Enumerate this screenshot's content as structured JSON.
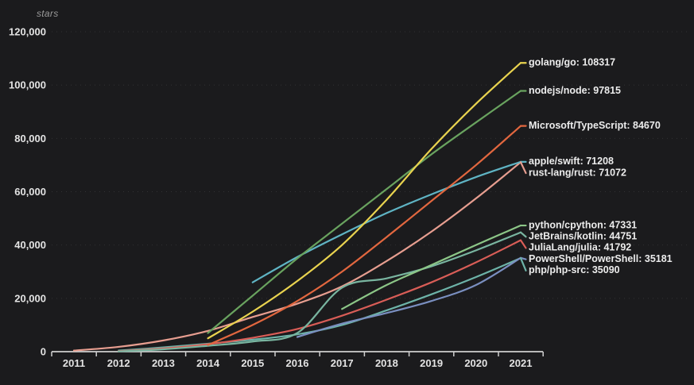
{
  "chart": {
    "background": "#1b1b1d",
    "axis_color": "#cfcfcf",
    "grid_color": "#ffffff",
    "tick_text_color": "#e3e3e3",
    "muted_text_color": "#9a9a9a",
    "label_text_color": "#ececec"
  },
  "chart_data": {
    "type": "line",
    "title": "",
    "xlabel": "",
    "ylabel": "stars",
    "x_range": [
      2011,
      2021
    ],
    "ylim": [
      0,
      120000
    ],
    "y_tick_values": [
      0,
      20000,
      40000,
      60000,
      80000,
      100000,
      120000
    ],
    "y_tick_labels": [
      "0",
      "20,000",
      "40,000",
      "60,000",
      "80,000",
      "100,000",
      "120,000"
    ],
    "x_tick_labels": [
      "2011",
      "2012",
      "2013",
      "2014",
      "2015",
      "2016",
      "2017",
      "2018",
      "2019",
      "2020",
      "2021"
    ],
    "grid": "horizontal-dashed",
    "legend_position": "right-end-labels",
    "series": [
      {
        "name": "rust-lang/rust",
        "final_value": 71072,
        "label": "rust-lang/rust: 71072",
        "color": "#e79e90",
        "points": [
          [
            2011,
            400
          ],
          [
            2012,
            1800
          ],
          [
            2013,
            4200
          ],
          [
            2014,
            7800
          ],
          [
            2015,
            13000
          ],
          [
            2016,
            18000
          ],
          [
            2017,
            24500
          ],
          [
            2018,
            34000
          ],
          [
            2019,
            45000
          ],
          [
            2020,
            57500
          ],
          [
            2021,
            71072
          ]
        ]
      },
      {
        "name": "php/php-src",
        "final_value": 35090,
        "label": "php/php-src: 35090",
        "color": "#6db3a8",
        "points": [
          [
            2012,
            400
          ],
          [
            2013,
            1600
          ],
          [
            2014,
            3000
          ],
          [
            2015,
            4500
          ],
          [
            2016,
            6500
          ],
          [
            2017,
            10000
          ],
          [
            2018,
            15500
          ],
          [
            2019,
            21500
          ],
          [
            2020,
            28000
          ],
          [
            2021,
            35090
          ]
        ]
      },
      {
        "name": "JuliaLang/julia",
        "final_value": 41792,
        "label": "JuliaLang/julia: 41792",
        "color": "#d95d57",
        "points": [
          [
            2012,
            200
          ],
          [
            2013,
            1200
          ],
          [
            2014,
            2800
          ],
          [
            2015,
            5200
          ],
          [
            2016,
            8500
          ],
          [
            2017,
            13500
          ],
          [
            2018,
            19500
          ],
          [
            2019,
            26000
          ],
          [
            2020,
            33500
          ],
          [
            2021,
            41792
          ]
        ]
      },
      {
        "name": "JetBrains/kotlin",
        "final_value": 44751,
        "label": "JetBrains/kotlin: 44751",
        "color": "#79b5a0",
        "points": [
          [
            2012,
            100
          ],
          [
            2013,
            900
          ],
          [
            2014,
            2200
          ],
          [
            2015,
            3800
          ],
          [
            2016,
            7000
          ],
          [
            2017,
            24000
          ],
          [
            2018,
            27500
          ],
          [
            2019,
            32000
          ],
          [
            2020,
            38000
          ],
          [
            2021,
            44751
          ]
        ]
      },
      {
        "name": "PowerShell/PowerShell",
        "final_value": 35181,
        "label": "PowerShell/PowerShell: 35181",
        "color": "#7a8fc0",
        "points": [
          [
            2016,
            5500
          ],
          [
            2017,
            10500
          ],
          [
            2018,
            14500
          ],
          [
            2019,
            19000
          ],
          [
            2020,
            25000
          ],
          [
            2021,
            35181
          ]
        ]
      },
      {
        "name": "python/cpython",
        "final_value": 47331,
        "label": "python/cpython: 47331",
        "color": "#8cc687",
        "points": [
          [
            2017,
            16000
          ],
          [
            2018,
            25000
          ],
          [
            2019,
            32500
          ],
          [
            2020,
            40000
          ],
          [
            2021,
            47331
          ]
        ]
      },
      {
        "name": "apple/swift",
        "final_value": 71208,
        "label": "apple/swift: 71208",
        "color": "#5fb4c4",
        "points": [
          [
            2015,
            26000
          ],
          [
            2016,
            35500
          ],
          [
            2017,
            44000
          ],
          [
            2018,
            52000
          ],
          [
            2019,
            59000
          ],
          [
            2020,
            65500
          ],
          [
            2021,
            71208
          ]
        ]
      },
      {
        "name": "Microsoft/TypeScript",
        "final_value": 84670,
        "label": "Microsoft/TypeScript: 84670",
        "color": "#e2673f",
        "points": [
          [
            2014,
            2500
          ],
          [
            2015,
            10000
          ],
          [
            2016,
            19000
          ],
          [
            2017,
            30000
          ],
          [
            2018,
            43000
          ],
          [
            2019,
            56500
          ],
          [
            2020,
            70000
          ],
          [
            2021,
            84670
          ]
        ]
      },
      {
        "name": "nodejs/node",
        "final_value": 97815,
        "label": "nodejs/node: 97815",
        "color": "#69a35f",
        "points": [
          [
            2014,
            7000
          ],
          [
            2015,
            21000
          ],
          [
            2016,
            35000
          ],
          [
            2017,
            48000
          ],
          [
            2018,
            61000
          ],
          [
            2019,
            74000
          ],
          [
            2020,
            86000
          ],
          [
            2021,
            97815
          ]
        ]
      },
      {
        "name": "golang/go",
        "final_value": 108317,
        "label": "golang/go: 108317",
        "color": "#e9d34f",
        "points": [
          [
            2014,
            5000
          ],
          [
            2015,
            15000
          ],
          [
            2016,
            26500
          ],
          [
            2017,
            40000
          ],
          [
            2018,
            57000
          ],
          [
            2019,
            76000
          ],
          [
            2020,
            93000
          ],
          [
            2021,
            108317
          ]
        ]
      }
    ]
  }
}
